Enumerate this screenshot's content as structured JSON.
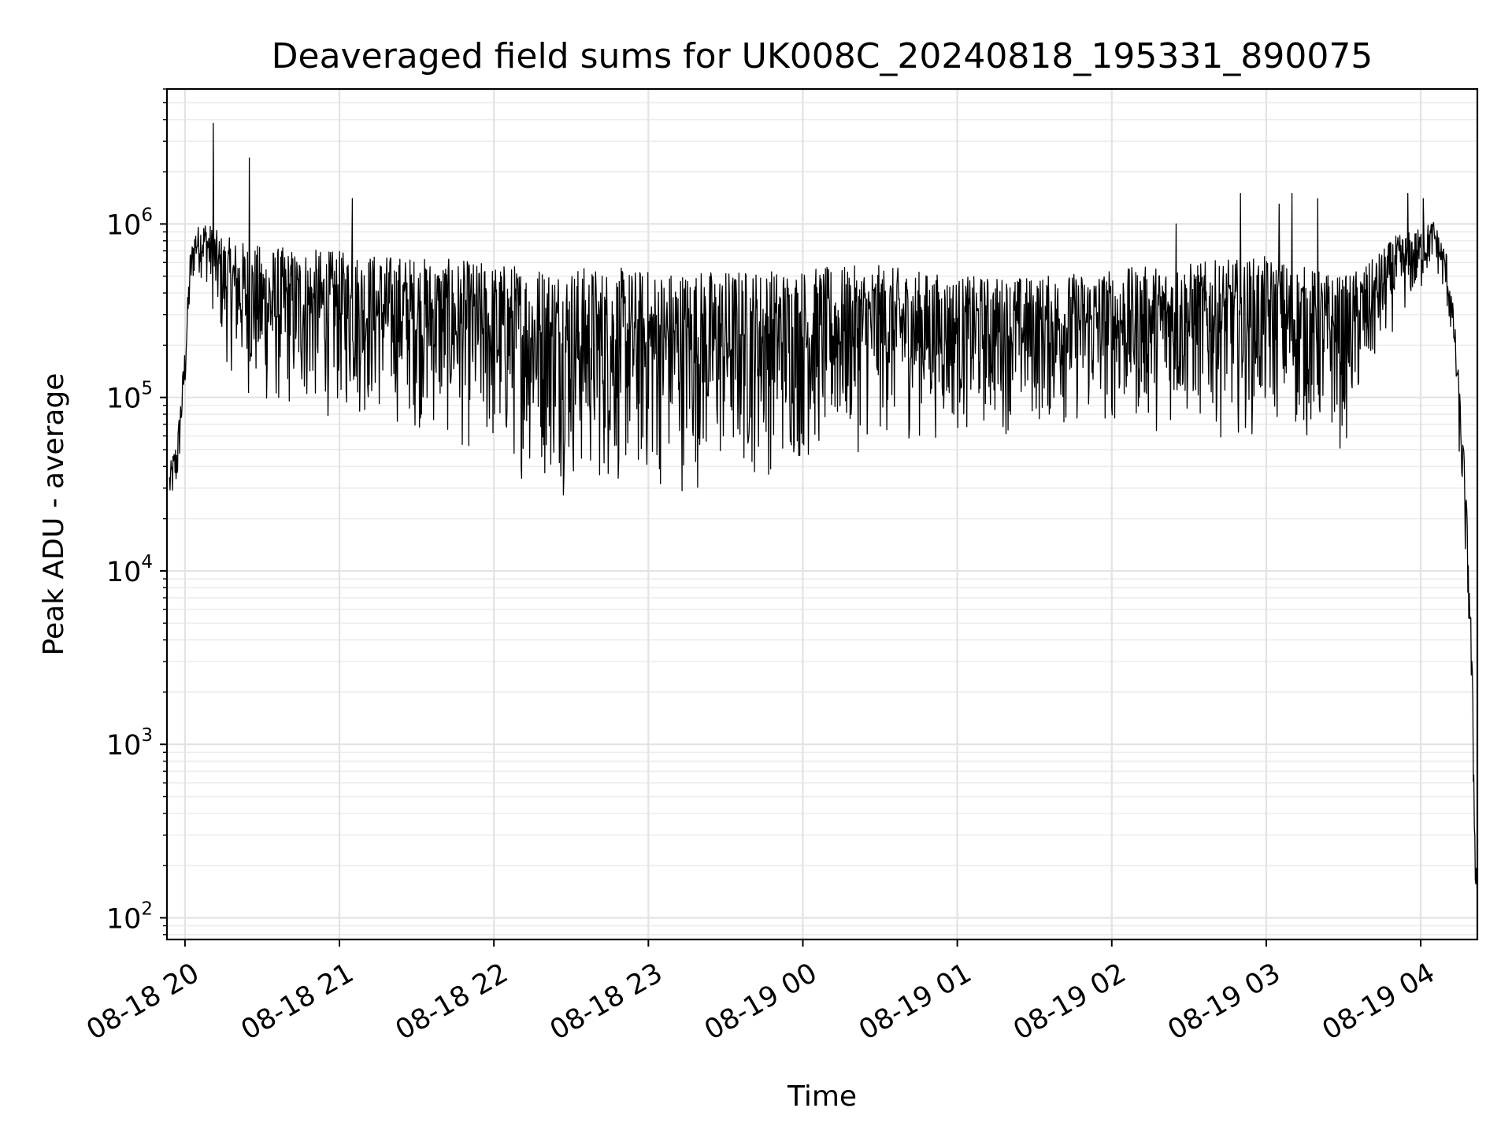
{
  "chart_data": {
    "type": "line",
    "title": "Deaveraged field sums for UK008C_20240818_195331_890075",
    "xlabel": "Time",
    "ylabel": "Peak ADU - average",
    "yscale": "log",
    "xlim": [
      "2024-08-18T19:53",
      "2024-08-19T04:22"
    ],
    "ylim": [
      75,
      6000000
    ],
    "grid": true,
    "legend": "none",
    "x_ticks": [
      "08-18 20",
      "08-18 21",
      "08-18 22",
      "08-18 23",
      "08-19 00",
      "08-19 01",
      "08-19 02",
      "08-19 03",
      "08-19 04"
    ],
    "x_tick_values": [
      "2024-08-18T20:00",
      "2024-08-18T21:00",
      "2024-08-18T22:00",
      "2024-08-18T23:00",
      "2024-08-19T00:00",
      "2024-08-19T01:00",
      "2024-08-19T02:00",
      "2024-08-19T03:00",
      "2024-08-19T04:00"
    ],
    "y_ticks": [
      {
        "value": 100,
        "base": "10",
        "exp": "2"
      },
      {
        "value": 1000,
        "base": "10",
        "exp": "3"
      },
      {
        "value": 10000,
        "base": "10",
        "exp": "4"
      },
      {
        "value": 100000,
        "base": "10",
        "exp": "5"
      },
      {
        "value": 1000000,
        "base": "10",
        "exp": "6"
      }
    ],
    "series": [
      {
        "color": "#000000",
        "envelope": [
          {
            "t": "2024-08-18T19:54",
            "low": 20000,
            "high": 40000
          },
          {
            "t": "2024-08-18T19:57",
            "low": 25000,
            "high": 60000
          },
          {
            "t": "2024-08-18T20:00",
            "low": 90000,
            "high": 200000
          },
          {
            "t": "2024-08-18T20:02",
            "low": 300000,
            "high": 700000
          },
          {
            "t": "2024-08-18T20:04",
            "low": 500000,
            "high": 950000
          },
          {
            "t": "2024-08-18T20:08",
            "low": 450000,
            "high": 1050000
          },
          {
            "t": "2024-08-18T20:15",
            "low": 150000,
            "high": 850000
          },
          {
            "t": "2024-08-18T20:30",
            "low": 70000,
            "high": 750000
          },
          {
            "t": "2024-08-18T21:00",
            "low": 70000,
            "high": 700000
          },
          {
            "t": "2024-08-18T21:30",
            "low": 60000,
            "high": 650000
          },
          {
            "t": "2024-08-18T22:00",
            "low": 35000,
            "high": 600000
          },
          {
            "t": "2024-08-18T22:30",
            "low": 25000,
            "high": 580000
          },
          {
            "t": "2024-08-18T23:00",
            "low": 25000,
            "high": 550000
          },
          {
            "t": "2024-08-18T23:30",
            "low": 28000,
            "high": 550000
          },
          {
            "t": "2024-08-19T00:00",
            "low": 35000,
            "high": 560000
          },
          {
            "t": "2024-08-19T00:30",
            "low": 50000,
            "high": 580000
          },
          {
            "t": "2024-08-19T01:00",
            "low": 55000,
            "high": 500000
          },
          {
            "t": "2024-08-19T01:30",
            "low": 60000,
            "high": 500000
          },
          {
            "t": "2024-08-19T02:00",
            "low": 60000,
            "high": 550000
          },
          {
            "t": "2024-08-19T02:30",
            "low": 60000,
            "high": 600000
          },
          {
            "t": "2024-08-19T03:00",
            "low": 55000,
            "high": 650000
          },
          {
            "t": "2024-08-19T03:30",
            "low": 45000,
            "high": 500000
          },
          {
            "t": "2024-08-19T03:40",
            "low": 100000,
            "high": 600000
          },
          {
            "t": "2024-08-19T03:50",
            "low": 250000,
            "high": 850000
          },
          {
            "t": "2024-08-19T04:00",
            "low": 350000,
            "high": 950000
          },
          {
            "t": "2024-08-19T04:05",
            "low": 600000,
            "high": 1050000
          },
          {
            "t": "2024-08-19T04:10",
            "low": 300000,
            "high": 700000
          },
          {
            "t": "2024-08-19T04:13",
            "low": 150000,
            "high": 300000
          },
          {
            "t": "2024-08-19T04:15",
            "low": 40000,
            "high": 120000
          },
          {
            "t": "2024-08-19T04:17",
            "low": 12000,
            "high": 45000
          },
          {
            "t": "2024-08-19T04:19",
            "low": 3000,
            "high": 10000
          },
          {
            "t": "2024-08-19T04:20",
            "low": 1000,
            "high": 3000
          },
          {
            "t": "2024-08-19T04:21",
            "low": 150,
            "high": 400
          },
          {
            "t": "2024-08-19T04:22",
            "low": 90,
            "high": 150
          }
        ],
        "spikes": [
          {
            "t": "2024-08-18T20:11",
            "value": 3800000
          },
          {
            "t": "2024-08-18T20:25",
            "value": 2400000
          },
          {
            "t": "2024-08-18T21:05",
            "value": 1400000
          },
          {
            "t": "2024-08-19T02:25",
            "value": 1000000
          },
          {
            "t": "2024-08-19T02:50",
            "value": 1500000
          },
          {
            "t": "2024-08-19T03:05",
            "value": 1300000
          },
          {
            "t": "2024-08-19T03:10",
            "value": 1500000
          },
          {
            "t": "2024-08-19T03:20",
            "value": 1400000
          },
          {
            "t": "2024-08-19T03:55",
            "value": 1500000
          },
          {
            "t": "2024-08-19T04:01",
            "value": 1400000
          }
        ]
      }
    ]
  }
}
